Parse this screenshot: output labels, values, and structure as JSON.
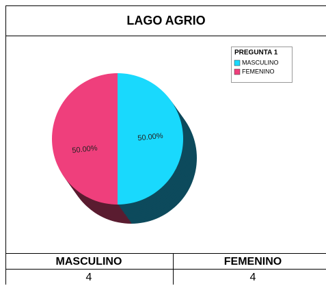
{
  "chart_data": {
    "type": "pie",
    "title": "LAGO AGRIO",
    "legend_title": "PREGUNTA 1",
    "categories": [
      "MASCULINO",
      "FEMENINO"
    ],
    "values": [
      50,
      50
    ],
    "value_labels": [
      "50.00%",
      "50.00%"
    ],
    "colors": [
      "#19d9fd",
      "#ef3f7c"
    ],
    "depth_colors": [
      "#0d4a5c",
      "#5a1c30"
    ],
    "legend": "top-right"
  },
  "table": {
    "headers": [
      "MASCULINO",
      "FEMENINO"
    ],
    "rows": [
      [
        4,
        4
      ]
    ]
  }
}
